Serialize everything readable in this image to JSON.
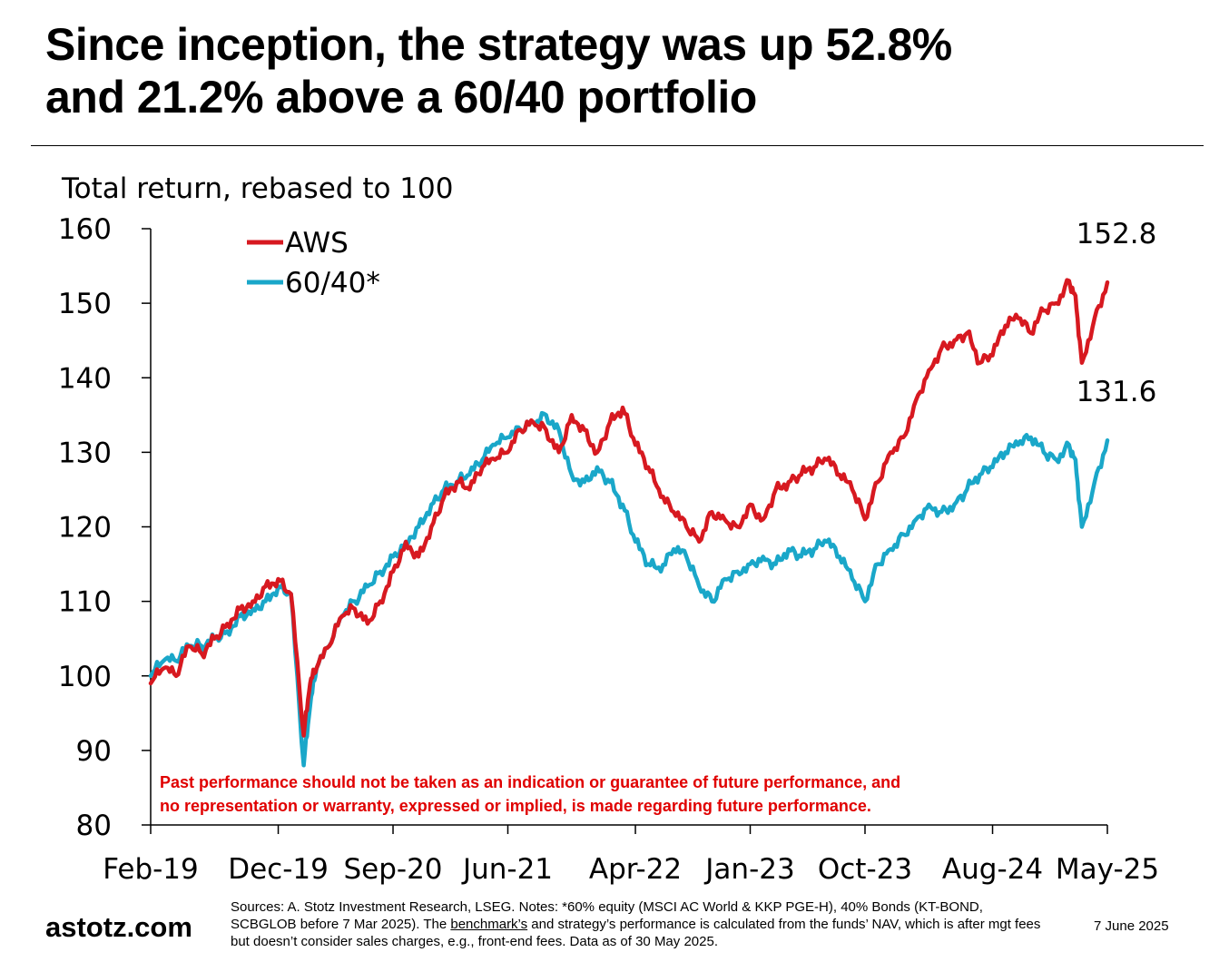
{
  "headline": {
    "line1": "Since inception, the strategy was up 52.8%",
    "line2": "and 21.2% above a 60/40 portfolio"
  },
  "colors": {
    "aws": "#d71920",
    "sixty_forty": "#1aa7c9",
    "disclaimer": "#e00000"
  },
  "chart_data": {
    "type": "line",
    "title": "Total return, rebased to 100",
    "xlabel": "",
    "ylabel": "Total return, rebased to 100",
    "ylim": [
      80,
      160
    ],
    "yticks": [
      80,
      90,
      100,
      110,
      120,
      130,
      140,
      150,
      160
    ],
    "x_ticks": [
      "Feb-19",
      "Dec-19",
      "Sep-20",
      "Jun-21",
      "Apr-22",
      "Jan-23",
      "Oct-23",
      "Aug-24",
      "May-25"
    ],
    "x_tick_months": [
      0,
      10,
      19,
      28,
      38,
      47,
      56,
      66,
      75
    ],
    "x_range_months": [
      0,
      75
    ],
    "legend_position": "top-left",
    "series": [
      {
        "name": "AWS",
        "end_label": "152.8",
        "x_months": [
          0,
          1,
          2,
          3,
          4,
          5,
          6,
          7,
          8,
          9,
          10,
          11,
          12,
          12.5,
          13,
          14,
          15,
          16,
          17,
          18,
          19,
          20,
          21,
          22,
          23,
          24,
          25,
          26,
          27,
          28,
          29,
          30,
          31,
          32,
          33,
          34,
          35,
          36,
          37,
          38,
          39,
          40,
          41,
          42,
          43,
          44,
          45,
          46,
          47,
          48,
          49,
          50,
          51,
          52,
          53,
          54,
          55,
          56,
          57,
          58,
          59,
          60,
          61,
          62,
          63,
          64,
          65,
          66,
          67,
          68,
          69,
          70,
          71,
          72,
          72.5,
          73,
          74,
          75
        ],
        "values": [
          99,
          101,
          100,
          104,
          103,
          105,
          107,
          109,
          110,
          112,
          113,
          111,
          92,
          99,
          101,
          104,
          108,
          109,
          107,
          110,
          114,
          118,
          116,
          120,
          124,
          126,
          125,
          128,
          129,
          130,
          133,
          134,
          133,
          130,
          135,
          133,
          130,
          134,
          136,
          131,
          128,
          124,
          122,
          120,
          118,
          122,
          121,
          120,
          123,
          121,
          125,
          126,
          127,
          128,
          129,
          127,
          125,
          121,
          126,
          130,
          132,
          137,
          141,
          144,
          145,
          146,
          142,
          143,
          147,
          148,
          146,
          149,
          150,
          153,
          151,
          142,
          148,
          152.8
        ]
      },
      {
        "name": "60/40*",
        "end_label": "131.6",
        "x_months": [
          0,
          1,
          2,
          3,
          4,
          5,
          6,
          7,
          8,
          9,
          10,
          11,
          12,
          12.5,
          13,
          14,
          15,
          16,
          17,
          18,
          19,
          20,
          21,
          22,
          23,
          24,
          25,
          26,
          27,
          28,
          29,
          30,
          31,
          32,
          33,
          34,
          35,
          36,
          37,
          38,
          39,
          40,
          41,
          42,
          43,
          44,
          45,
          46,
          47,
          48,
          49,
          50,
          51,
          52,
          53,
          54,
          55,
          56,
          57,
          58,
          59,
          60,
          61,
          62,
          63,
          64,
          65,
          66,
          67,
          68,
          69,
          70,
          71,
          72,
          72.5,
          73,
          74,
          75
        ],
        "values": [
          100,
          102,
          102,
          104,
          104,
          105,
          106,
          108,
          109,
          110,
          112,
          111,
          88,
          96,
          101,
          104,
          108,
          110,
          112,
          114,
          116,
          118,
          120,
          123,
          125,
          126,
          127,
          129,
          131,
          132,
          133,
          134,
          135,
          133,
          127,
          126,
          128,
          126,
          123,
          118,
          115,
          114,
          117,
          116,
          112,
          110,
          113,
          114,
          115,
          116,
          115,
          117,
          116,
          117,
          118,
          116,
          113,
          110,
          115,
          117,
          119,
          121,
          123,
          122,
          123,
          125,
          127,
          128,
          130,
          131,
          132,
          130,
          129,
          131,
          129,
          120,
          126,
          131.6
        ]
      }
    ]
  },
  "disclaimer": {
    "line1": "Past performance should not be taken as an indication or guarantee of future performance, and",
    "line2": "no representation or warranty, expressed or implied, is made regarding future performance."
  },
  "footer": {
    "brand": "astotz.com",
    "sources_pre": "Sources: A. Stotz Investment Research, LSEG. Notes: *60% equity (MSCI AC World & KKP PGE-H), 40% Bonds (KT-BOND, SCBGLOB before 7 Mar 2025). The",
    "sources_link": "benchmark’s",
    "sources_post": "and strategy’s performance is calculated from the funds’ NAV, which is after mgt fees but doesn’t consider sales charges, e.g., front-end fees. Data as of 30 May 2025.",
    "date": "7 June 2025"
  }
}
